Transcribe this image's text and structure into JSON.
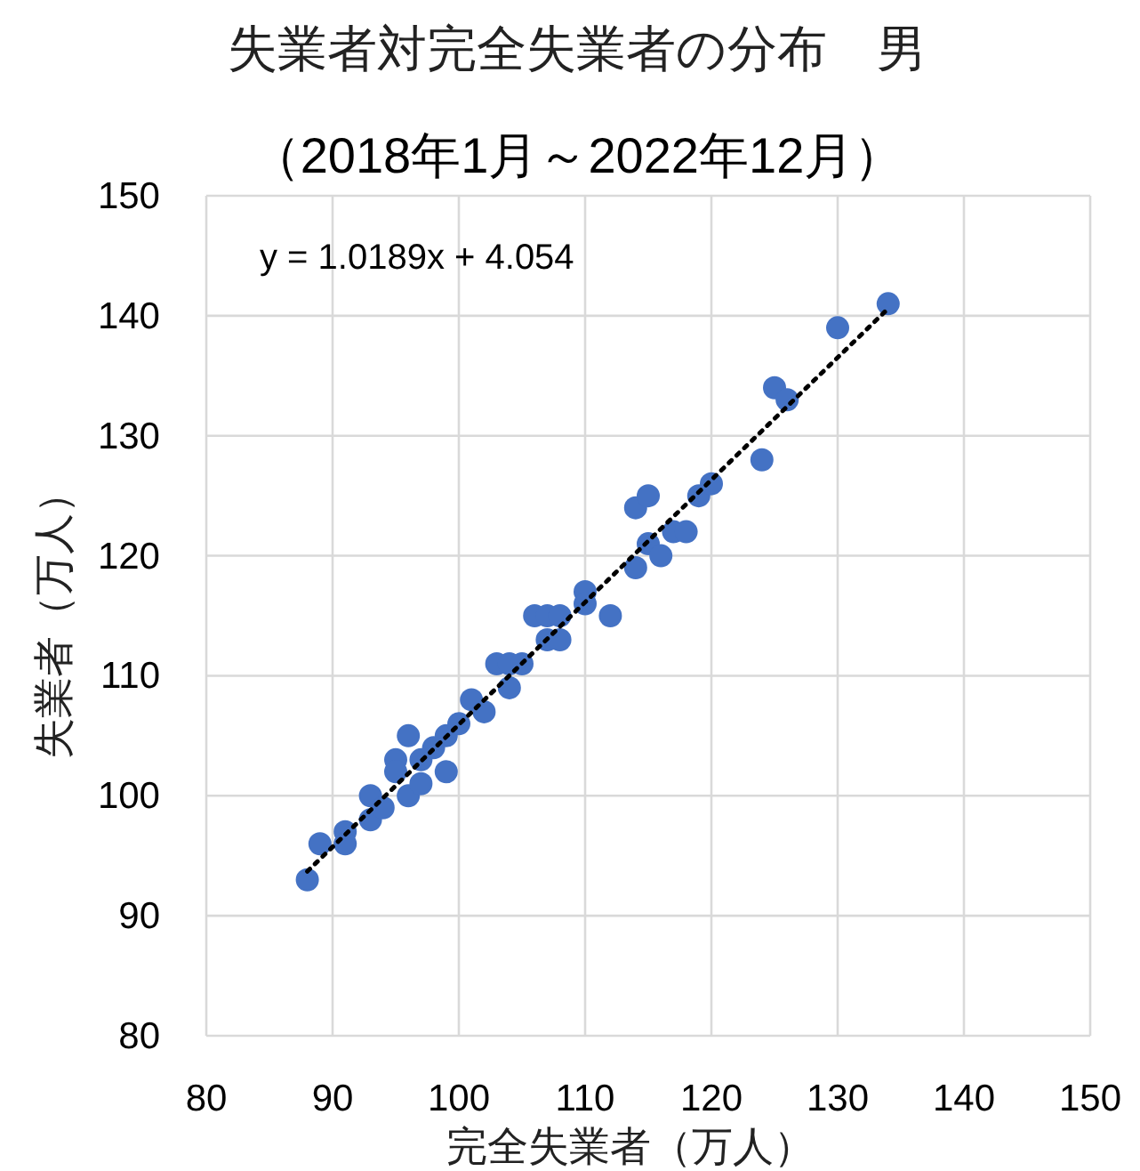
{
  "chart_data": {
    "type": "scatter",
    "title": "失業者対完全失業者の分布　男",
    "subtitle": "（2018年1月～2022年12月）",
    "xlabel": "完全失業者（万人）",
    "ylabel": "失業者（万人）",
    "xlim": [
      80,
      150
    ],
    "xticks": [
      80,
      90,
      100,
      110,
      120,
      130,
      140,
      150
    ],
    "ylim": [
      80,
      150
    ],
    "yticks": [
      80,
      90,
      100,
      110,
      120,
      130,
      140,
      150
    ],
    "grid": true,
    "annotations": [
      "y = 1.0189x + 4.054"
    ],
    "series": [
      {
        "color": "#4472c4",
        "marker": "circle",
        "x": [
          88,
          89,
          91,
          91,
          93,
          93,
          94,
          95,
          95,
          96,
          96,
          97,
          97,
          98,
          99,
          99,
          100,
          101,
          102,
          103,
          104,
          104,
          105,
          106,
          107,
          107,
          108,
          108,
          110,
          110,
          112,
          114,
          114,
          115,
          115,
          116,
          117,
          118,
          119,
          120,
          124,
          125,
          126,
          130,
          134
        ],
        "values": [
          93,
          96,
          97,
          96,
          100,
          98,
          99,
          103,
          102,
          105,
          100,
          103,
          101,
          104,
          105,
          102,
          106,
          108,
          107,
          111,
          111,
          109,
          111,
          115,
          113,
          115,
          115,
          113,
          117,
          116,
          115,
          124,
          119,
          125,
          121,
          120,
          122,
          122,
          125,
          126,
          128,
          134,
          133,
          139,
          141
        ]
      },
      {
        "type": "line",
        "color": "#000000",
        "line_style": "dotted",
        "marker": "none",
        "x": [
          88,
          134
        ],
        "values": [
          93.7,
          140.6
        ]
      }
    ]
  }
}
